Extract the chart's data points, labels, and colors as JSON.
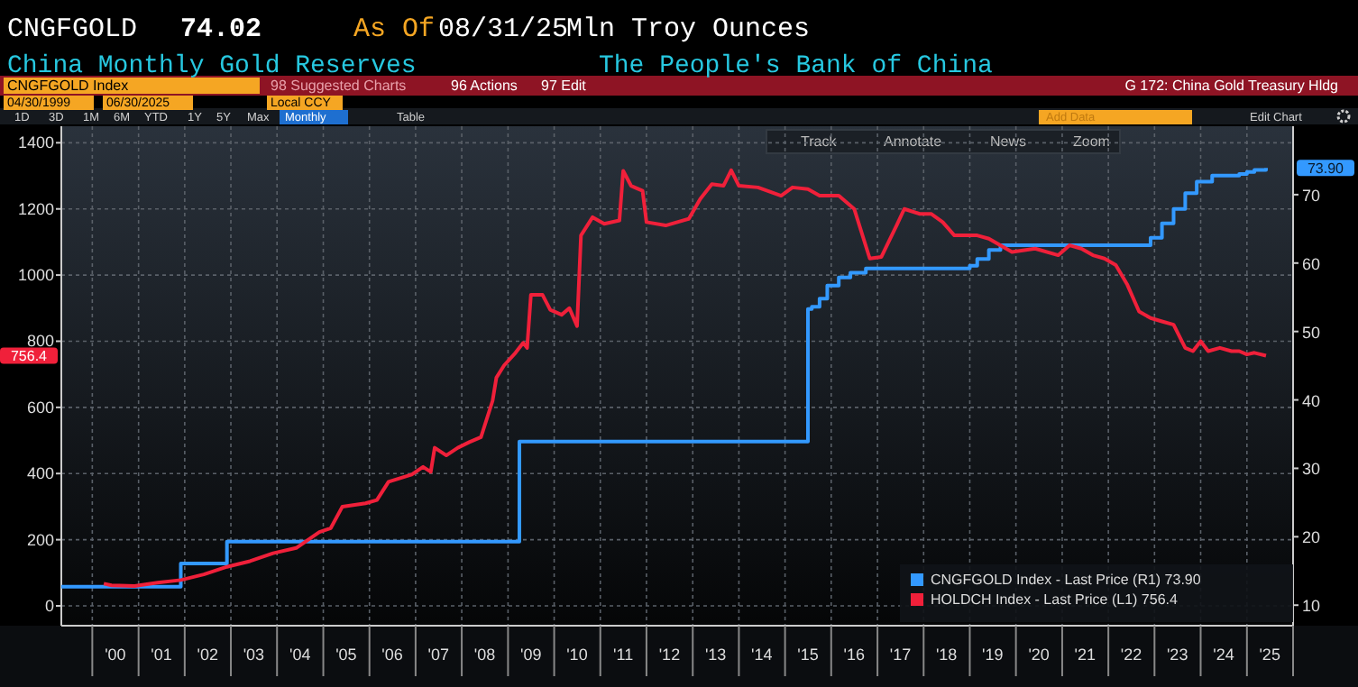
{
  "chart_data": {
    "type": "line",
    "title": "China Monthly Gold Reserves",
    "subtitle": "The People's Bank of China",
    "annotations": [
      "CNGFGOLD",
      "74.02",
      "As Of",
      "08/31/25",
      "Mln Troy Ounces",
      "CNGFGOLD Index",
      "98 Suggested Charts",
      "96 Actions",
      "97 Edit",
      "G 172: China Gold Treasury Hldg",
      "04/30/1999",
      "06/30/2025",
      "Local CCY",
      "1D",
      "3D",
      "1M",
      "6M",
      "YTD",
      "1Y",
      "5Y",
      "Max",
      "Monthly",
      "Table",
      "Add Data",
      "Edit Chart",
      "Track",
      "Annotate",
      "News",
      "Zoom",
      "73.90",
      "756.4"
    ],
    "xlim": [
      "1999-05",
      "2026-01"
    ],
    "xticks": [
      {
        "value": "2000-01",
        "label": null
      },
      {
        "value": "2000-07",
        "label": "'00"
      },
      {
        "value": "2001-01",
        "label": null
      },
      {
        "value": "2001-07",
        "label": "'01"
      },
      {
        "value": "2002-01",
        "label": null
      },
      {
        "value": "2002-07",
        "label": "'02"
      },
      {
        "value": "2003-01",
        "label": null
      },
      {
        "value": "2003-07",
        "label": "'03"
      },
      {
        "value": "2004-01",
        "label": null
      },
      {
        "value": "2004-07",
        "label": "'04"
      },
      {
        "value": "2005-01",
        "label": null
      },
      {
        "value": "2005-07",
        "label": "'05"
      },
      {
        "value": "2006-01",
        "label": null
      },
      {
        "value": "2006-07",
        "label": "'06"
      },
      {
        "value": "2007-01",
        "label": null
      },
      {
        "value": "2007-07",
        "label": "'07"
      },
      {
        "value": "2008-01",
        "label": null
      },
      {
        "value": "2008-07",
        "label": "'08"
      },
      {
        "value": "2009-01",
        "label": null
      },
      {
        "value": "2009-07",
        "label": "'09"
      },
      {
        "value": "2010-01",
        "label": null
      },
      {
        "value": "2010-07",
        "label": "'10"
      },
      {
        "value": "2011-01",
        "label": null
      },
      {
        "value": "2011-07",
        "label": "'11"
      },
      {
        "value": "2012-01",
        "label": null
      },
      {
        "value": "2012-07",
        "label": "'12"
      },
      {
        "value": "2013-01",
        "label": null
      },
      {
        "value": "2013-07",
        "label": "'13"
      },
      {
        "value": "2014-01",
        "label": null
      },
      {
        "value": "2014-07",
        "label": "'14"
      },
      {
        "value": "2015-01",
        "label": null
      },
      {
        "value": "2015-07",
        "label": "'15"
      },
      {
        "value": "2016-01",
        "label": null
      },
      {
        "value": "2016-07",
        "label": "'16"
      },
      {
        "value": "2017-01",
        "label": null
      },
      {
        "value": "2017-07",
        "label": "'17"
      },
      {
        "value": "2018-01",
        "label": null
      },
      {
        "value": "2018-07",
        "label": "'18"
      },
      {
        "value": "2019-01",
        "label": null
      },
      {
        "value": "2019-07",
        "label": "'19"
      },
      {
        "value": "2020-01",
        "label": null
      },
      {
        "value": "2020-07",
        "label": "'20"
      },
      {
        "value": "2021-01",
        "label": null
      },
      {
        "value": "2021-07",
        "label": "'21"
      },
      {
        "value": "2022-01",
        "label": null
      },
      {
        "value": "2022-07",
        "label": "'22"
      },
      {
        "value": "2023-01",
        "label": null
      },
      {
        "value": "2023-07",
        "label": "'23"
      },
      {
        "value": "2024-01",
        "label": null
      },
      {
        "value": "2024-07",
        "label": "'24"
      },
      {
        "value": "2025-01",
        "label": null
      },
      {
        "value": "2025-07",
        "label": "'25"
      },
      {
        "value": "2026-01",
        "label": null
      }
    ],
    "ylim": [
      -60,
      1450
    ],
    "yticks": [
      0,
      200,
      400,
      600,
      800,
      1000,
      1200,
      1400
    ],
    "y2lim": [
      7,
      80
    ],
    "y2ticks": [
      10,
      20,
      30,
      40,
      50,
      60,
      70
    ],
    "grid": true,
    "legend": "bottom right",
    "series": [
      {
        "name": "CNGFGOLD Index - Last Price (R1) 73.90",
        "type": "step",
        "axis": "y2",
        "color": "#3399ff",
        "x": [
          "1999-05",
          "2001-12",
          "2002-12",
          "2009-04",
          "2015-07",
          "2015-08",
          "2015-10",
          "2015-12",
          "2016-03",
          "2016-06",
          "2016-10",
          "2018-12",
          "2019-01",
          "2019-03",
          "2019-06",
          "2019-09",
          "2022-11",
          "2022-12",
          "2023-03",
          "2023-06",
          "2023-09",
          "2023-12",
          "2024-04",
          "2024-10",
          "2024-11",
          "2025-01",
          "2025-03",
          "2025-06"
        ],
        "values": [
          12.7,
          16.1,
          19.3,
          33.9,
          53.3,
          53.6,
          54.8,
          56.7,
          57.9,
          58.6,
          59.2,
          59.2,
          59.6,
          60.6,
          61.9,
          62.6,
          62.6,
          63.7,
          65.8,
          67.9,
          70.2,
          71.9,
          72.8,
          72.8,
          73.0,
          73.3,
          73.6,
          73.9
        ]
      },
      {
        "name": "HOLDCH Index - Last Price (L1) 756.4",
        "color": "#f0203a",
        "x": [
          "2000-04",
          "2000-06",
          "2000-12",
          "2001-06",
          "2001-12",
          "2002-06",
          "2002-12",
          "2003-06",
          "2003-12",
          "2004-06",
          "2004-12",
          "2005-03",
          "2005-06",
          "2005-12",
          "2006-03",
          "2006-06",
          "2006-12",
          "2007-03",
          "2007-05",
          "2007-06",
          "2007-09",
          "2007-12",
          "2008-03",
          "2008-06",
          "2008-09",
          "2008-10",
          "2008-12",
          "2009-03",
          "2009-05",
          "2009-06",
          "2009-07",
          "2009-10",
          "2009-12",
          "2010-03",
          "2010-05",
          "2010-07",
          "2010-08",
          "2010-11",
          "2011-02",
          "2011-06",
          "2011-07",
          "2011-09",
          "2011-12",
          "2012-01",
          "2012-06",
          "2012-12",
          "2013-03",
          "2013-06",
          "2013-09",
          "2013-11",
          "2014-01",
          "2014-06",
          "2014-12",
          "2015-03",
          "2015-07",
          "2015-10",
          "2016-03",
          "2016-07",
          "2016-11",
          "2017-02",
          "2017-06",
          "2017-08",
          "2017-12",
          "2018-03",
          "2018-06",
          "2018-09",
          "2019-03",
          "2019-06",
          "2019-12",
          "2020-06",
          "2020-12",
          "2021-03",
          "2021-06",
          "2021-09",
          "2021-12",
          "2022-03",
          "2022-06",
          "2022-09",
          "2022-12",
          "2023-03",
          "2023-06",
          "2023-09",
          "2023-11",
          "2024-01",
          "2024-03",
          "2024-06",
          "2024-09",
          "2024-11",
          "2025-01",
          "2025-03",
          "2025-06"
        ],
        "values": [
          67,
          62,
          60,
          70,
          78,
          95,
          118,
          135,
          159,
          175,
          223,
          235,
          300,
          310,
          320,
          375,
          397,
          420,
          405,
          478,
          455,
          478,
          495,
          510,
          620,
          690,
          727,
          765,
          795,
          780,
          940,
          940,
          895,
          880,
          900,
          846,
          1120,
          1175,
          1155,
          1165,
          1315,
          1270,
          1255,
          1160,
          1150,
          1170,
          1230,
          1275,
          1270,
          1317,
          1270,
          1265,
          1240,
          1265,
          1260,
          1240,
          1240,
          1200,
          1050,
          1055,
          1150,
          1200,
          1185,
          1185,
          1160,
          1120,
          1120,
          1110,
          1070,
          1080,
          1060,
          1090,
          1080,
          1060,
          1050,
          1030,
          970,
          890,
          870,
          860,
          850,
          780,
          770,
          800,
          770,
          780,
          770,
          770,
          760,
          765,
          756.4
        ]
      }
    ]
  }
}
